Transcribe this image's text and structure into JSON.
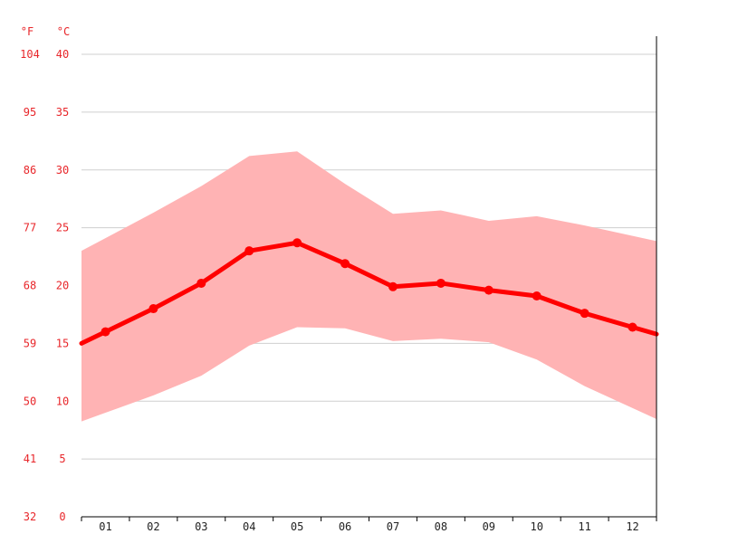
{
  "chart_data": {
    "type": "line",
    "categories": [
      "01",
      "02",
      "03",
      "04",
      "05",
      "06",
      "07",
      "08",
      "09",
      "10",
      "11",
      "12"
    ],
    "series": [
      {
        "values": [
          16.0,
          18.0,
          20.2,
          23.0,
          23.7,
          21.9,
          19.9,
          20.2,
          19.6,
          19.1,
          17.6,
          16.4
        ]
      }
    ],
    "band": {
      "upper": [
        24.1,
        26.3,
        28.6,
        31.2,
        31.6,
        28.8,
        26.2,
        26.5,
        25.6,
        26.0,
        25.2,
        24.3
      ],
      "lower": [
        9.0,
        10.5,
        12.2,
        14.8,
        16.4,
        16.3,
        15.2,
        15.4,
        15.1,
        13.6,
        11.3,
        9.4
      ]
    },
    "y_units_left": "°F",
    "y_units_right": "°C",
    "ylim": [
      0,
      40
    ],
    "y_ticks_c": [
      "40",
      "35",
      "30",
      "25",
      "20",
      "15",
      "10",
      "5",
      "0"
    ],
    "y_ticks_f": [
      "104",
      "95",
      "86",
      "77",
      "68",
      "59",
      "50",
      "41",
      "32"
    ],
    "grid": true,
    "colors": {
      "line": "#ff0000",
      "band": "#ffb3b4",
      "ticks": "#e8262a",
      "grid": "#cfcfcf",
      "axis": "#000000"
    }
  }
}
